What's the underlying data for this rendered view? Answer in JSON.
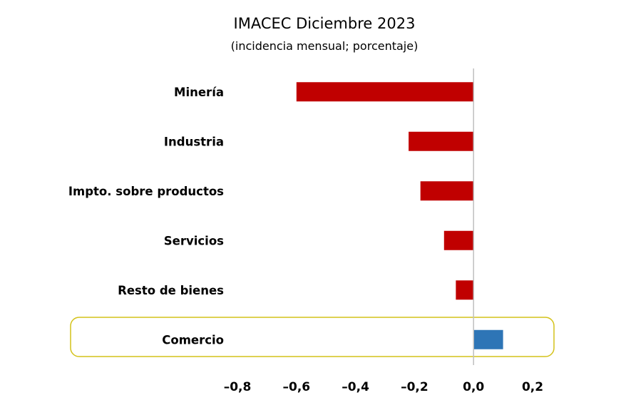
{
  "chart_data": {
    "type": "bar",
    "orientation": "horizontal",
    "title": "IMACEC Diciembre 2023",
    "subtitle": "(incidencia mensual; porcentaje)",
    "categories": [
      "Minería",
      "Industria",
      "Impto. sobre productos",
      "Servicios",
      "Resto de bienes",
      "Comercio"
    ],
    "values": [
      -0.6,
      -0.22,
      -0.18,
      -0.1,
      -0.06,
      0.1
    ],
    "xlim": [
      -0.8,
      0.2
    ],
    "xticks": [
      -0.8,
      -0.6,
      -0.4,
      -0.2,
      0.0,
      0.2
    ],
    "tick_labels": [
      "–0,8",
      "–0,6",
      "–0,4",
      "–0,2",
      "0,0",
      "0,2"
    ],
    "grid": false,
    "highlighted_category": "Comercio",
    "colors": {
      "negative": "#C00000",
      "positive": "#2E75B6",
      "highlight_border": "#D4C21A",
      "zero_line": "#BFBFBF"
    }
  }
}
